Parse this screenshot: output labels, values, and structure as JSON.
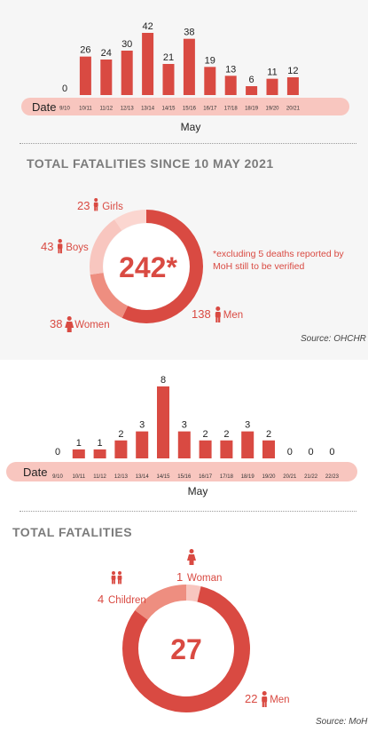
{
  "colors": {
    "accent": "#d94a42",
    "pink_bar": "#f8c6bf",
    "donut_medium": "#ee8e80",
    "donut_light": "#f8c6bf",
    "heading_gray": "#7b7b7b"
  },
  "top": {
    "date_label": "Date",
    "month_label": "May",
    "heading": "TOTAL FATALITIES SINCE 10 MAY 2021",
    "center_value": "242*",
    "note": "*excluding 5 deaths reported by MoH still to be verified",
    "source": "Source: OHCHR"
  },
  "bottom": {
    "date_label": "Date",
    "month_label": "May",
    "heading": "TOTAL FATALITIES",
    "center_value": "27",
    "source": "Source: MoH"
  },
  "chart_data": [
    {
      "type": "bar",
      "categories": [
        "9/10",
        "10/11",
        "11/12",
        "12/13",
        "13/14",
        "14/15",
        "15/16",
        "16/17",
        "17/18",
        "18/19",
        "19/20",
        "20/21"
      ],
      "values": [
        0,
        26,
        24,
        30,
        42,
        21,
        38,
        19,
        13,
        6,
        11,
        12
      ],
      "xlabel": "May",
      "ylim": [
        0,
        42
      ]
    },
    {
      "type": "pie",
      "title": "TOTAL FATALITIES SINCE 10 MAY 2021",
      "labels": [
        "Men",
        "Women",
        "Boys",
        "Girls"
      ],
      "values": [
        138,
        38,
        43,
        23
      ],
      "total": "242*"
    },
    {
      "type": "bar",
      "categories": [
        "9/10",
        "10/11",
        "11/12",
        "12/13",
        "13/14",
        "14/15",
        "15/16",
        "16/17",
        "17/18",
        "18/19",
        "19/20",
        "20/21",
        "21/22",
        "22/23"
      ],
      "values": [
        0,
        1,
        1,
        2,
        3,
        8,
        3,
        2,
        2,
        3,
        2,
        0,
        0,
        0
      ],
      "xlabel": "May",
      "ylim": [
        0,
        8
      ]
    },
    {
      "type": "pie",
      "title": "TOTAL FATALITIES",
      "labels": [
        "Men",
        "Children",
        "Woman"
      ],
      "values": [
        22,
        4,
        1
      ],
      "total": "27"
    }
  ]
}
